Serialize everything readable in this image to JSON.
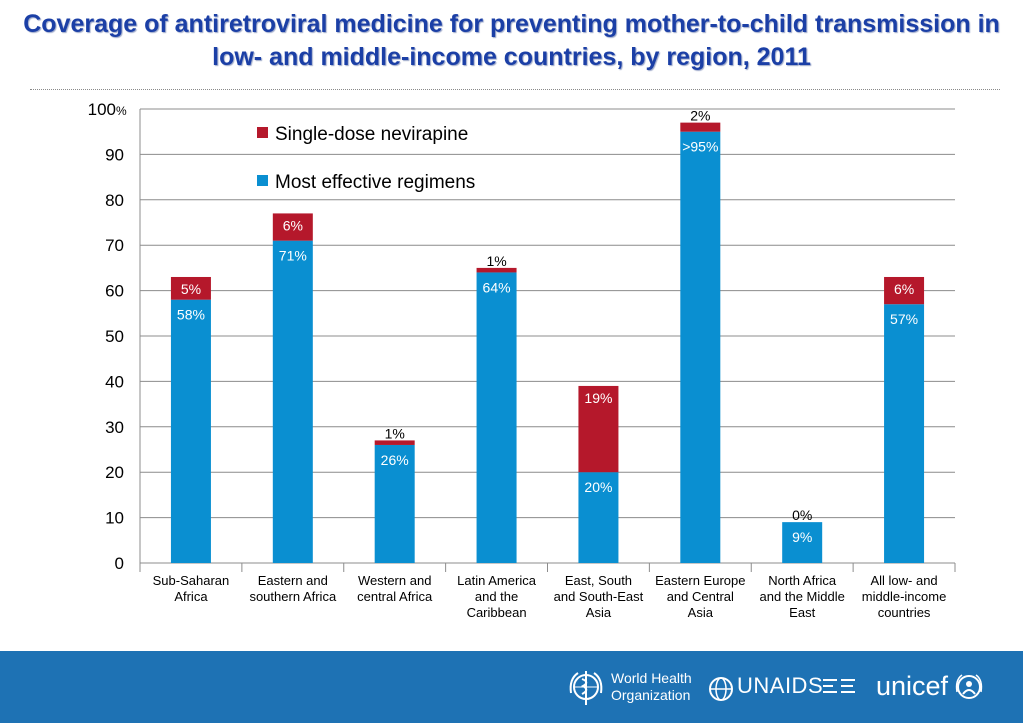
{
  "title": "Coverage of antiretroviral medicine for preventing mother-to-child transmission in low- and middle-income countries, by region, 2011",
  "colors": {
    "effective": "#0a8fd1",
    "nevirapine": "#b5182b",
    "title": "#1b3fa6",
    "footer": "#1e72b4"
  },
  "logos": {
    "who_line1": "World Health",
    "who_line2": "Organization",
    "unaids": "UNAIDS",
    "unicef": "unicef"
  },
  "chart_data": {
    "type": "bar",
    "stacked": true,
    "ylim": [
      0,
      100
    ],
    "yticks": [
      "0",
      "10",
      "20",
      "30",
      "40",
      "50",
      "60",
      "70",
      "80",
      "90",
      "100"
    ],
    "top_tick_suffix": "%",
    "grid": true,
    "legend_placement": "top-left",
    "categories": [
      [
        "Sub-Saharan",
        "Africa"
      ],
      [
        "Eastern and",
        "southern Africa"
      ],
      [
        "Western and",
        "central Africa"
      ],
      [
        "Latin America",
        "and the",
        "Caribbean"
      ],
      [
        "East, South",
        "and South-East",
        "Asia"
      ],
      [
        "Eastern Europe",
        "and Central",
        "Asia"
      ],
      [
        "North Africa",
        "and the Middle",
        "East"
      ],
      [
        "All low- and",
        "middle-income",
        "countries"
      ]
    ],
    "series": [
      {
        "name": "Most effective regimens",
        "color": "#0a8fd1",
        "values": [
          58,
          71,
          26,
          64,
          20,
          95,
          9,
          57
        ],
        "labels": [
          "58%",
          "71%",
          "26%",
          "64%",
          "20%",
          ">95%",
          "9%",
          "57%"
        ]
      },
      {
        "name": "Single-dose nevirapine",
        "color": "#b5182b",
        "values": [
          5,
          6,
          1,
          1,
          19,
          2,
          0,
          6
        ],
        "labels": [
          "5%",
          "6%",
          "1%",
          "1%",
          "19%",
          "2%",
          "0%",
          "6%"
        ]
      }
    ],
    "legend_order": [
      "Single-dose nevirapine",
      "Most effective regimens"
    ]
  }
}
